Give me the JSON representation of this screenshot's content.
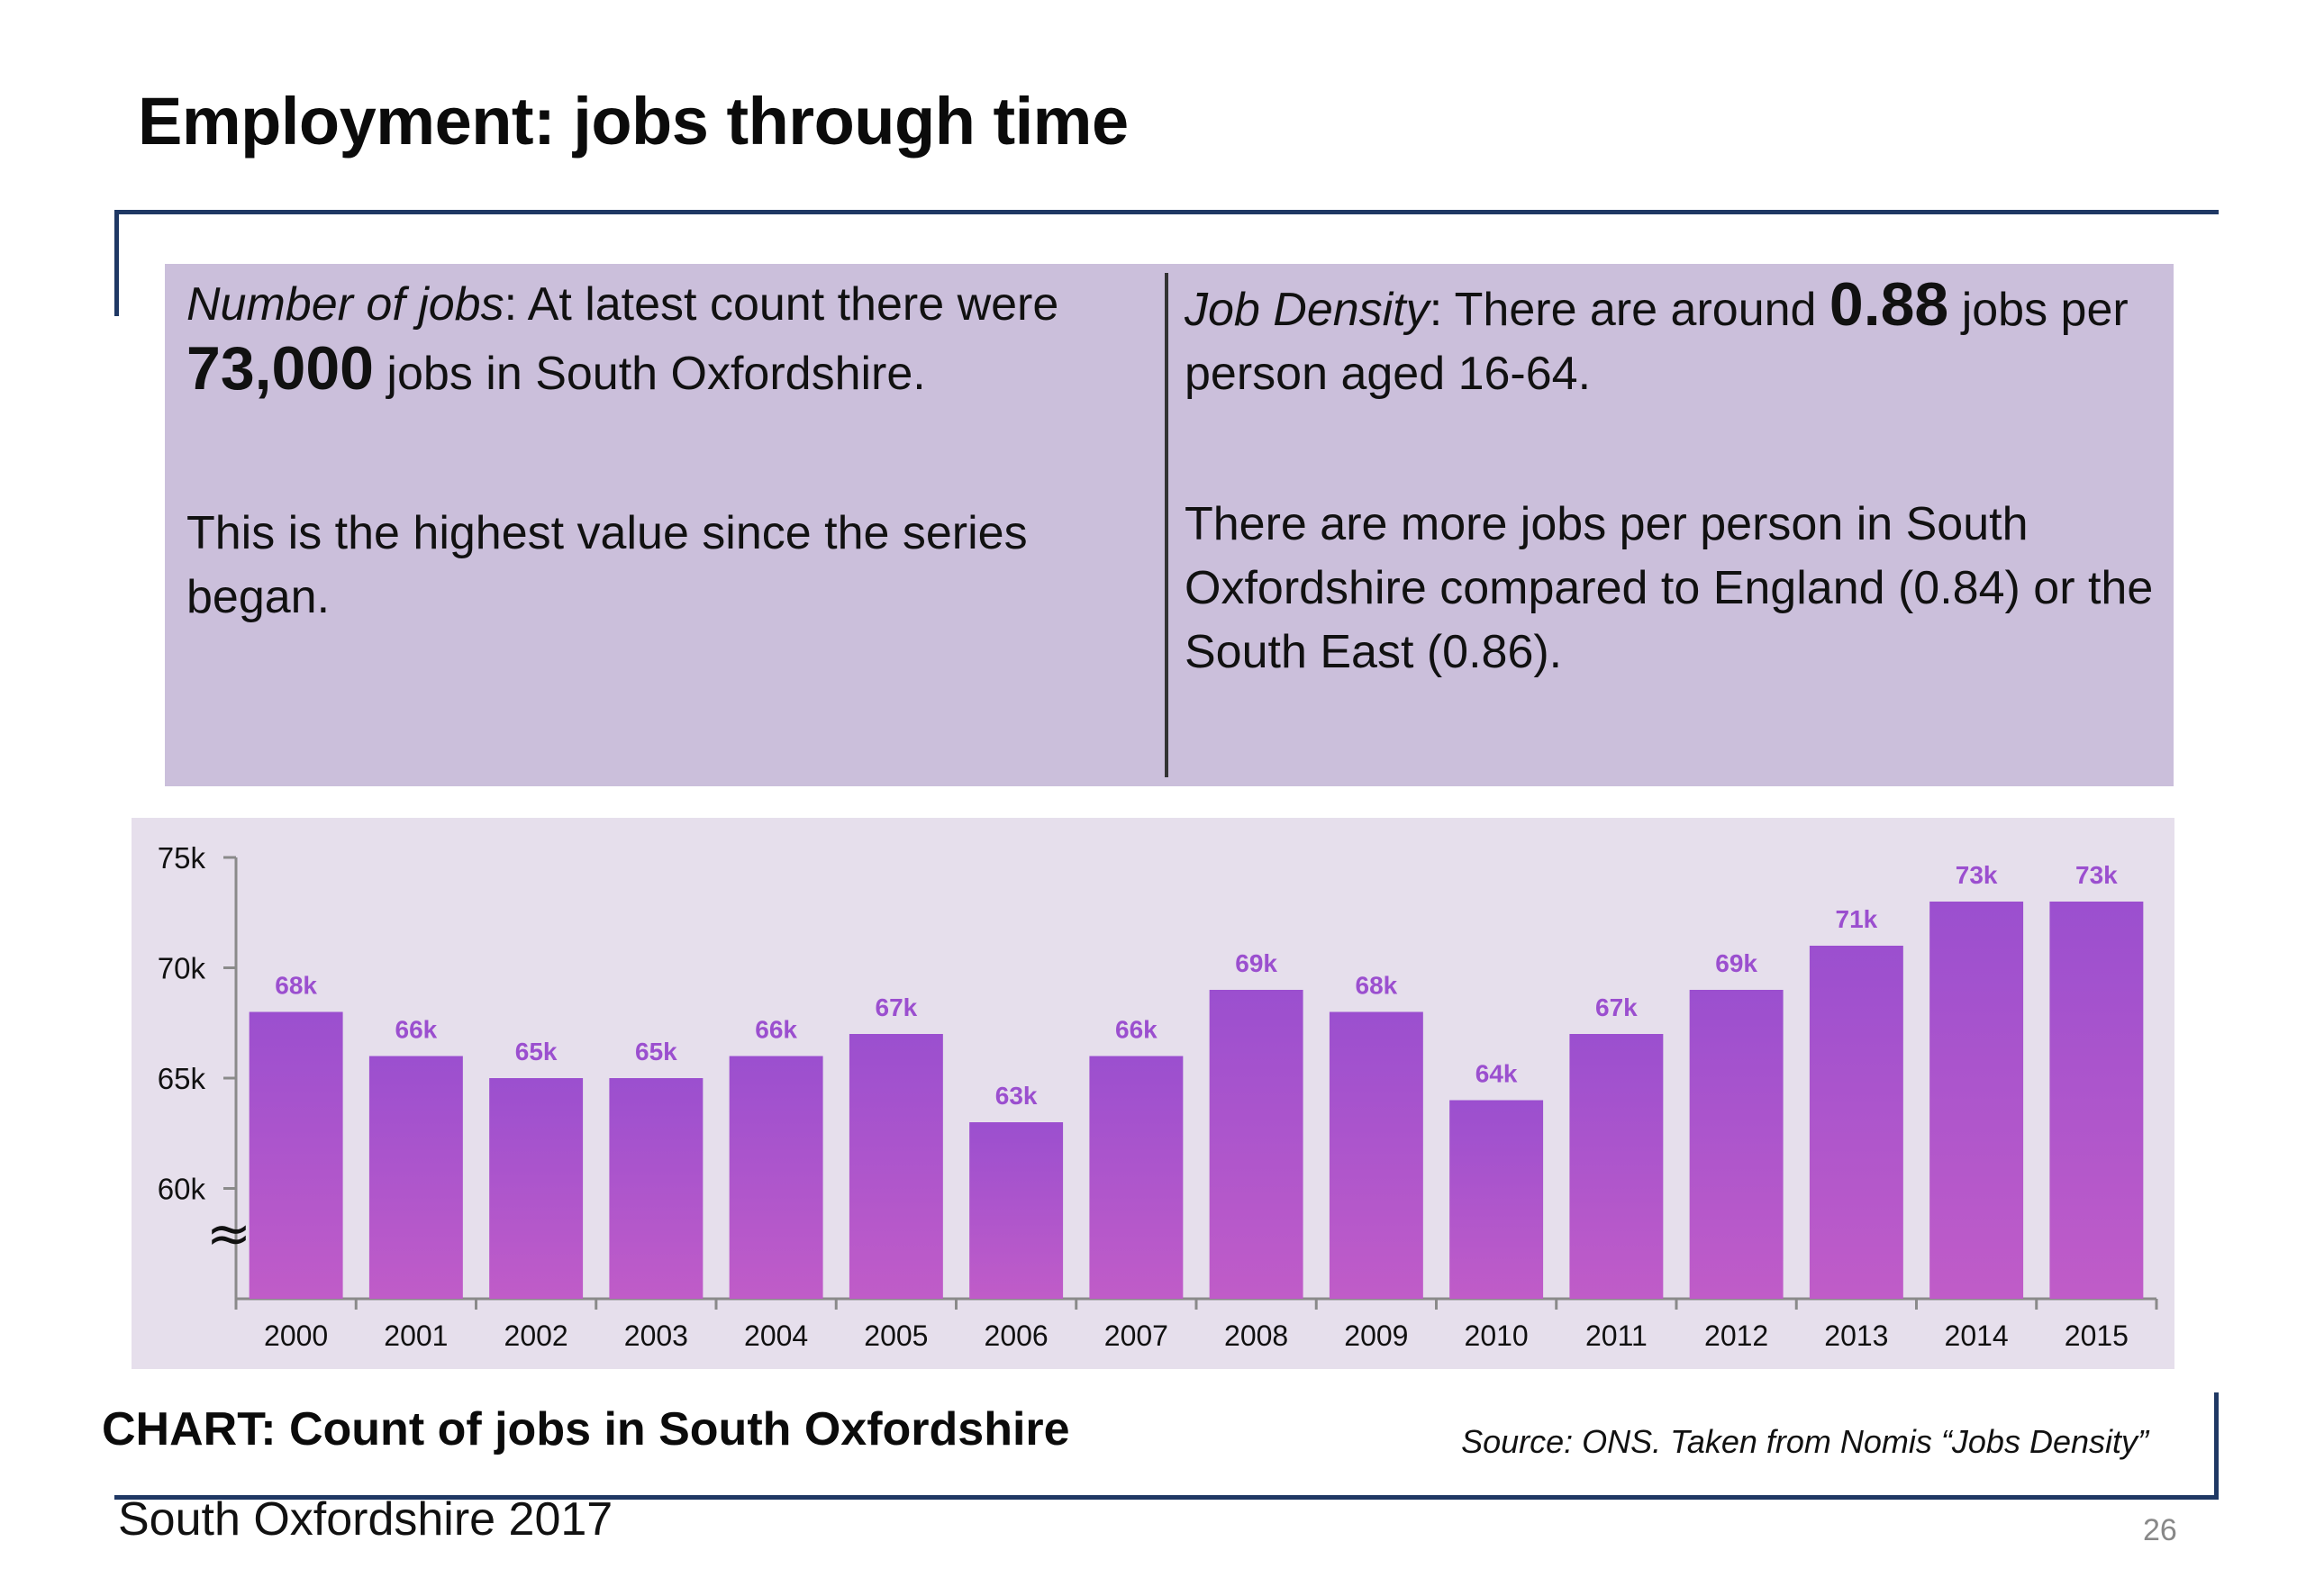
{
  "slide": {
    "title": "Employment: jobs through time",
    "left_panel": {
      "label": "Number of jobs",
      "sentence_a": ": At latest count there were ",
      "big_value": "73,000",
      "sentence_b": " jobs in South Oxfordshire.",
      "note": "This is the highest value since the series began."
    },
    "right_panel": {
      "label": "Job Density",
      "sentence_a": ": There are around ",
      "big_value": "0.88",
      "sentence_b": " jobs per person aged 16-64.",
      "note": "There are more jobs per person in South Oxfordshire compared to England (0.84) or the South East (0.86)."
    },
    "chart_caption": "CHART: Count of jobs in South Oxfordshire",
    "source": "Source: ONS.  Taken from Nomis “Jobs Density”",
    "footer": "South Oxfordshire  2017",
    "page_number": "26"
  },
  "chart_data": {
    "type": "bar",
    "categories": [
      "2000",
      "2001",
      "2002",
      "2003",
      "2004",
      "2005",
      "2006",
      "2007",
      "2008",
      "2009",
      "2010",
      "2011",
      "2012",
      "2013",
      "2014",
      "2015"
    ],
    "values": [
      68,
      66,
      65,
      65,
      66,
      67,
      63,
      66,
      69,
      68,
      64,
      67,
      69,
      71,
      73,
      73
    ],
    "value_labels": [
      "68k",
      "66k",
      "65k",
      "65k",
      "66k",
      "67k",
      "63k",
      "66k",
      "69k",
      "68k",
      "64k",
      "67k",
      "69k",
      "71k",
      "73k",
      "73k"
    ],
    "y_ticks": [
      {
        "value": 60,
        "label": "60k"
      },
      {
        "value": 65,
        "label": "65k"
      },
      {
        "value": 70,
        "label": "70k"
      },
      {
        "value": 75,
        "label": "75k"
      }
    ],
    "ylim": [
      55,
      75
    ],
    "axis_break_symbol": "≈",
    "grid": false,
    "legend": "none",
    "colors": {
      "bar_top": "#9b4fcf",
      "bar_bottom": "#c05cc8",
      "label": "#9b4fcf",
      "axis": "#8a8a8a"
    }
  }
}
